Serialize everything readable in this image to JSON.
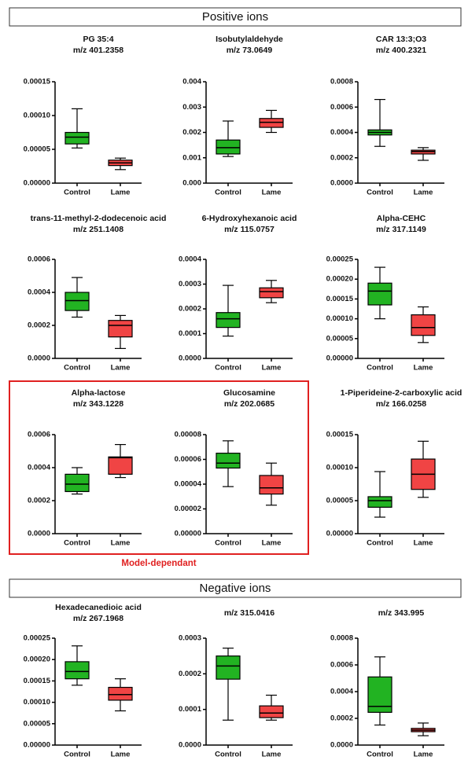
{
  "sections": [
    "Positive ions",
    "Negative ions"
  ],
  "highlight_label": "Model-dependant",
  "chart_data": [
    {
      "type": "box",
      "title": "PG 35:4",
      "subtitle": "m/z 401.2358",
      "categories": [
        "Control",
        "Lame"
      ],
      "colors": [
        "#22b322",
        "#f04444"
      ],
      "boxes": [
        {
          "min": 5.2e-05,
          "q1": 5.8e-05,
          "median": 6.8e-05,
          "q3": 7.5e-05,
          "max": 0.00011
        },
        {
          "min": 2e-05,
          "q1": 2.6e-05,
          "median": 3e-05,
          "q3": 3.4e-05,
          "max": 3.7e-05
        }
      ],
      "ylim": [
        0,
        0.00015
      ],
      "yticks": [
        {
          "value": 0,
          "label": "0.00000"
        },
        {
          "value": 5e-05,
          "label": "0.00005"
        },
        {
          "value": 0.0001,
          "label": "0.00010"
        },
        {
          "value": 0.00015,
          "label": "0.00015"
        }
      ]
    },
    {
      "type": "box",
      "title": "Isobutylaldehyde",
      "subtitle": "m/z 73.0649",
      "categories": [
        "Control",
        "Lame"
      ],
      "colors": [
        "#22b322",
        "#f04444"
      ],
      "boxes": [
        {
          "min": 0.00105,
          "q1": 0.00115,
          "median": 0.0014,
          "q3": 0.0017,
          "max": 0.00245
        },
        {
          "min": 0.002,
          "q1": 0.0022,
          "median": 0.0024,
          "q3": 0.00255,
          "max": 0.00287
        }
      ],
      "ylim": [
        0,
        0.004
      ],
      "yticks": [
        {
          "value": 0,
          "label": "0.000"
        },
        {
          "value": 0.001,
          "label": "0.001"
        },
        {
          "value": 0.002,
          "label": "0.002"
        },
        {
          "value": 0.003,
          "label": "0.003"
        },
        {
          "value": 0.004,
          "label": "0.004"
        }
      ]
    },
    {
      "type": "box",
      "title": "CAR 13:3;O3",
      "subtitle": "m/z 400.2321",
      "categories": [
        "Control",
        "Lame"
      ],
      "colors": [
        "#22b322",
        "#f04444"
      ],
      "boxes": [
        {
          "min": 0.00029,
          "q1": 0.00038,
          "median": 0.0004,
          "q3": 0.00042,
          "max": 0.00066
        },
        {
          "min": 0.00018,
          "q1": 0.00023,
          "median": 0.00025,
          "q3": 0.00026,
          "max": 0.00028
        }
      ],
      "ylim": [
        0,
        0.0008
      ],
      "yticks": [
        {
          "value": 0,
          "label": "0.0000"
        },
        {
          "value": 0.0002,
          "label": "0.0002"
        },
        {
          "value": 0.0004,
          "label": "0.0004"
        },
        {
          "value": 0.0006,
          "label": "0.0006"
        },
        {
          "value": 0.0008,
          "label": "0.0008"
        }
      ]
    },
    {
      "type": "box",
      "title": "trans-11-methyl-2-dodecenoic acid",
      "subtitle": "m/z 251.1408",
      "categories": [
        "Control",
        "Lame"
      ],
      "colors": [
        "#22b322",
        "#f04444"
      ],
      "boxes": [
        {
          "min": 0.00025,
          "q1": 0.00029,
          "median": 0.00035,
          "q3": 0.0004,
          "max": 0.00049
        },
        {
          "min": 6e-05,
          "q1": 0.00013,
          "median": 0.0002,
          "q3": 0.00023,
          "max": 0.00026
        }
      ],
      "ylim": [
        0,
        0.0006
      ],
      "yticks": [
        {
          "value": 0,
          "label": "0.0000"
        },
        {
          "value": 0.0002,
          "label": "0.0002"
        },
        {
          "value": 0.0004,
          "label": "0.0004"
        },
        {
          "value": 0.0006,
          "label": "0.0006"
        }
      ]
    },
    {
      "type": "box",
      "title": "6-Hydroxyhexanoic acid",
      "subtitle": "m/z 115.0757",
      "categories": [
        "Control",
        "Lame"
      ],
      "colors": [
        "#22b322",
        "#f04444"
      ],
      "boxes": [
        {
          "min": 9e-05,
          "q1": 0.000125,
          "median": 0.00016,
          "q3": 0.000185,
          "max": 0.000295
        },
        {
          "min": 0.000225,
          "q1": 0.000245,
          "median": 0.00027,
          "q3": 0.000285,
          "max": 0.000315
        }
      ],
      "ylim": [
        0,
        0.0004
      ],
      "yticks": [
        {
          "value": 0,
          "label": "0.0000"
        },
        {
          "value": 0.0001,
          "label": "0.0001"
        },
        {
          "value": 0.0002,
          "label": "0.0002"
        },
        {
          "value": 0.0003,
          "label": "0.0003"
        },
        {
          "value": 0.0004,
          "label": "0.0004"
        }
      ]
    },
    {
      "type": "box",
      "title": "Alpha-CEHC",
      "subtitle": "m/z 317.1149",
      "categories": [
        "Control",
        "Lame"
      ],
      "colors": [
        "#22b322",
        "#f04444"
      ],
      "boxes": [
        {
          "min": 0.0001,
          "q1": 0.000135,
          "median": 0.00017,
          "q3": 0.00019,
          "max": 0.00023
        },
        {
          "min": 4e-05,
          "q1": 5.8e-05,
          "median": 7.8e-05,
          "q3": 0.00011,
          "max": 0.00013
        }
      ],
      "ylim": [
        0,
        0.00025
      ],
      "yticks": [
        {
          "value": 0,
          "label": "0.00000"
        },
        {
          "value": 5e-05,
          "label": "0.00005"
        },
        {
          "value": 0.0001,
          "label": "0.00010"
        },
        {
          "value": 0.00015,
          "label": "0.00015"
        },
        {
          "value": 0.0002,
          "label": "0.00020"
        },
        {
          "value": 0.00025,
          "label": "0.00025"
        }
      ]
    },
    {
      "type": "box",
      "title": "Alpha-lactose",
      "subtitle": "m/z 343.1228",
      "categories": [
        "Control",
        "Lame"
      ],
      "colors": [
        "#22b322",
        "#f04444"
      ],
      "boxes": [
        {
          "min": 0.00024,
          "q1": 0.000255,
          "median": 0.0003,
          "q3": 0.00036,
          "max": 0.0004
        },
        {
          "min": 0.00034,
          "q1": 0.00036,
          "median": 0.00046,
          "q3": 0.000465,
          "max": 0.00054
        }
      ],
      "ylim": [
        0,
        0.0006
      ],
      "yticks": [
        {
          "value": 0,
          "label": "0.0000"
        },
        {
          "value": 0.0002,
          "label": "0.0002"
        },
        {
          "value": 0.0004,
          "label": "0.0004"
        },
        {
          "value": 0.0006,
          "label": "0.0006"
        }
      ]
    },
    {
      "type": "box",
      "title": "Glucosamine",
      "subtitle": "m/z 202.0685",
      "categories": [
        "Control",
        "Lame"
      ],
      "colors": [
        "#22b322",
        "#f04444"
      ],
      "boxes": [
        {
          "min": 3.8e-05,
          "q1": 5.3e-05,
          "median": 5.7e-05,
          "q3": 6.5e-05,
          "max": 7.5e-05
        },
        {
          "min": 2.3e-05,
          "q1": 3.2e-05,
          "median": 3.7e-05,
          "q3": 4.7e-05,
          "max": 5.7e-05
        }
      ],
      "ylim": [
        0,
        8e-05
      ],
      "yticks": [
        {
          "value": 0,
          "label": "0.00000"
        },
        {
          "value": 2e-05,
          "label": "0.00002"
        },
        {
          "value": 4e-05,
          "label": "0.00004"
        },
        {
          "value": 6e-05,
          "label": "0.00006"
        },
        {
          "value": 8e-05,
          "label": "0.00008"
        }
      ]
    },
    {
      "type": "box",
      "title": "1-Piperideine-2-carboxylic acid",
      "subtitle": "m/z 166.0258",
      "categories": [
        "Control",
        "Lame"
      ],
      "colors": [
        "#22b322",
        "#f04444"
      ],
      "boxes": [
        {
          "min": 2.5e-05,
          "q1": 4e-05,
          "median": 5e-05,
          "q3": 5.6e-05,
          "max": 9.4e-05
        },
        {
          "min": 5.5e-05,
          "q1": 6.7e-05,
          "median": 9e-05,
          "q3": 0.000113,
          "max": 0.00014
        }
      ],
      "ylim": [
        0,
        0.00015
      ],
      "yticks": [
        {
          "value": 0,
          "label": "0.00000"
        },
        {
          "value": 5e-05,
          "label": "0.00005"
        },
        {
          "value": 0.0001,
          "label": "0.00010"
        },
        {
          "value": 0.00015,
          "label": "0.00015"
        }
      ]
    },
    {
      "type": "box",
      "title": "Hexadecanedioic acid",
      "subtitle": "m/z 267.1968",
      "categories": [
        "Control",
        "Lame"
      ],
      "colors": [
        "#22b322",
        "#f04444"
      ],
      "boxes": [
        {
          "min": 0.00014,
          "q1": 0.000155,
          "median": 0.000172,
          "q3": 0.000195,
          "max": 0.000232
        },
        {
          "min": 8e-05,
          "q1": 0.000105,
          "median": 0.000118,
          "q3": 0.000135,
          "max": 0.000155
        }
      ],
      "ylim": [
        0,
        0.00025
      ],
      "yticks": [
        {
          "value": 0,
          "label": "0.00000"
        },
        {
          "value": 5e-05,
          "label": "0.00005"
        },
        {
          "value": 0.0001,
          "label": "0.00010"
        },
        {
          "value": 0.00015,
          "label": "0.00015"
        },
        {
          "value": 0.0002,
          "label": "0.00020"
        },
        {
          "value": 0.00025,
          "label": "0.00025"
        }
      ]
    },
    {
      "type": "box",
      "title": "m/z 315.0416",
      "categories": [
        "Control",
        "Lame"
      ],
      "colors": [
        "#22b322",
        "#f04444"
      ],
      "boxes": [
        {
          "min": 7e-05,
          "q1": 0.000185,
          "median": 0.000222,
          "q3": 0.00025,
          "max": 0.000272
        },
        {
          "min": 7e-05,
          "q1": 7.7e-05,
          "median": 9e-05,
          "q3": 0.00011,
          "max": 0.00014
        }
      ],
      "ylim": [
        0,
        0.0003
      ],
      "yticks": [
        {
          "value": 0,
          "label": "0.0000"
        },
        {
          "value": 0.0001,
          "label": "0.0001"
        },
        {
          "value": 0.0002,
          "label": "0.0002"
        },
        {
          "value": 0.0003,
          "label": "0.0003"
        }
      ]
    },
    {
      "type": "box",
      "title": "m/z 343.995",
      "categories": [
        "Control",
        "Lame"
      ],
      "colors": [
        "#22b322",
        "#f04444"
      ],
      "boxes": [
        {
          "min": 0.00015,
          "q1": 0.000245,
          "median": 0.00029,
          "q3": 0.00051,
          "max": 0.00066
        },
        {
          "min": 7e-05,
          "q1": 0.0001,
          "median": 0.000112,
          "q3": 0.000125,
          "max": 0.000165
        }
      ],
      "ylim": [
        0,
        0.0008
      ],
      "yticks": [
        {
          "value": 0,
          "label": "0.0000"
        },
        {
          "value": 0.0002,
          "label": "0.0002"
        },
        {
          "value": 0.0004,
          "label": "0.0004"
        },
        {
          "value": 0.0006,
          "label": "0.0006"
        },
        {
          "value": 0.0008,
          "label": "0.0008"
        }
      ]
    }
  ]
}
